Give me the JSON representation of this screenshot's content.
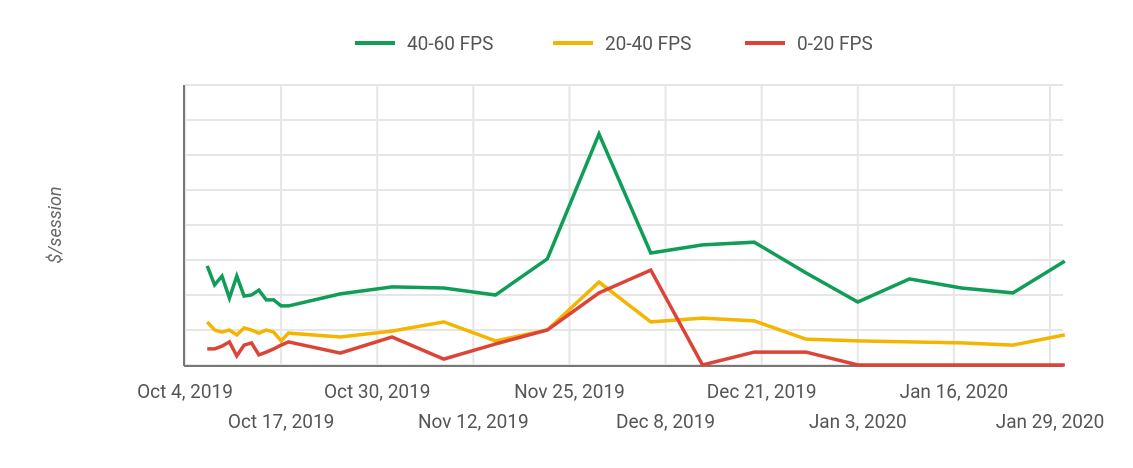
{
  "chart_data": {
    "type": "line",
    "title": "",
    "xlabel": "",
    "ylabel": "$/session",
    "y_tick_labels_shown": false,
    "ylim": [
      0,
      8
    ],
    "grid": true,
    "legend_position": "top",
    "x_ticks": [
      "Oct 4, 2019",
      "Oct 17, 2019",
      "Oct 30, 2019",
      "Nov 12, 2019",
      "Nov 25, 2019",
      "Dec 8, 2019",
      "Dec 21, 2019",
      "Jan 3, 2020",
      "Jan 16, 2020",
      "Jan 29, 2020"
    ],
    "x": [
      "2019-10-07",
      "2019-10-08",
      "2019-10-09",
      "2019-10-10",
      "2019-10-11",
      "2019-10-12",
      "2019-10-13",
      "2019-10-14",
      "2019-10-15",
      "2019-10-16",
      "2019-10-17",
      "2019-10-18",
      "2019-10-25",
      "2019-11-01",
      "2019-11-08",
      "2019-11-15",
      "2019-11-22",
      "2019-11-29",
      "2019-12-06",
      "2019-12-13",
      "2019-12-20",
      "2019-12-27",
      "2020-01-03",
      "2020-01-10",
      "2020-01-17",
      "2020-01-24",
      "2020-01-31"
    ],
    "series": [
      {
        "name": "40-60 FPS",
        "color": "#0F9D58",
        "values": [
          2.83,
          2.29,
          2.54,
          1.91,
          2.54,
          1.97,
          2.0,
          2.14,
          1.86,
          1.86,
          1.69,
          1.69,
          2.03,
          2.23,
          2.2,
          2.0,
          3.03,
          6.6,
          3.2,
          3.43,
          3.51,
          2.63,
          1.8,
          2.46,
          2.2,
          2.06,
          2.97
        ]
      },
      {
        "name": "20-40 FPS",
        "color": "#F4B400",
        "values": [
          1.23,
          1.0,
          0.94,
          1.0,
          0.86,
          1.06,
          1.0,
          0.91,
          1.0,
          0.94,
          0.69,
          0.91,
          0.8,
          0.97,
          1.23,
          0.69,
          1.0,
          2.37,
          1.23,
          1.34,
          1.26,
          0.74,
          0.69,
          0.66,
          0.63,
          0.57,
          0.86
        ]
      },
      {
        "name": "0-20 FPS",
        "color": "#DB4437",
        "values": [
          0.46,
          0.46,
          0.54,
          0.66,
          0.26,
          0.57,
          0.63,
          0.29,
          0.37,
          0.46,
          0.57,
          0.66,
          0.34,
          0.8,
          0.17,
          0.6,
          1.0,
          2.06,
          2.71,
          0,
          0.37,
          0.37,
          0,
          0,
          0,
          0,
          0
        ]
      }
    ]
  }
}
